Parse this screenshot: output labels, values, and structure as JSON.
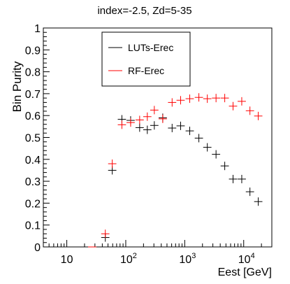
{
  "chart_data": {
    "type": "scatter",
    "title": "index=-2.5,  Zd=5-35",
    "xlabel": "Eest [GeV]",
    "ylabel": "Bin Purity",
    "xscale": "log",
    "xlim": [
      4,
      30000
    ],
    "ylim": [
      0,
      1
    ],
    "x_tick_labels": [
      {
        "value": 10,
        "base": "10",
        "exp": ""
      },
      {
        "value": 100,
        "base": "10",
        "exp": "2"
      },
      {
        "value": 1000,
        "base": "10",
        "exp": "3"
      },
      {
        "value": 10000,
        "base": "10",
        "exp": "4"
      }
    ],
    "y_ticks": [
      0,
      0.1,
      0.2,
      0.3,
      0.4,
      0.5,
      0.6,
      0.7,
      0.8,
      0.9,
      1
    ],
    "y_tick_labels": [
      "0",
      "0.1",
      "0.2",
      "0.3",
      "0.4",
      "0.5",
      "0.6",
      "0.7",
      "0.8",
      "0.9",
      "1"
    ],
    "legend_position": "top-center",
    "grid": false,
    "series": [
      {
        "name": "LUTs-Erec",
        "color": "#000000",
        "points": [
          {
            "x": 27,
            "y": 0.0
          },
          {
            "x": 45,
            "y": 0.043
          },
          {
            "x": 59,
            "y": 0.35
          },
          {
            "x": 86,
            "y": 0.583
          },
          {
            "x": 121,
            "y": 0.578
          },
          {
            "x": 172,
            "y": 0.545
          },
          {
            "x": 232,
            "y": 0.535
          },
          {
            "x": 305,
            "y": 0.555
          },
          {
            "x": 424,
            "y": 0.59
          },
          {
            "x": 611,
            "y": 0.543
          },
          {
            "x": 852,
            "y": 0.553
          },
          {
            "x": 1216,
            "y": 0.53
          },
          {
            "x": 1737,
            "y": 0.497
          },
          {
            "x": 2416,
            "y": 0.455
          },
          {
            "x": 3396,
            "y": 0.423
          },
          {
            "x": 4771,
            "y": 0.37
          },
          {
            "x": 6600,
            "y": 0.31
          },
          {
            "x": 9270,
            "y": 0.31
          },
          {
            "x": 12760,
            "y": 0.252
          },
          {
            "x": 17660,
            "y": 0.207
          }
        ]
      },
      {
        "name": "RF-Erec",
        "color": "#ff0000",
        "points": [
          {
            "x": 27,
            "y": 0.0
          },
          {
            "x": 45,
            "y": 0.06
          },
          {
            "x": 59,
            "y": 0.38
          },
          {
            "x": 86,
            "y": 0.558
          },
          {
            "x": 121,
            "y": 0.568
          },
          {
            "x": 172,
            "y": 0.58
          },
          {
            "x": 232,
            "y": 0.595
          },
          {
            "x": 305,
            "y": 0.625
          },
          {
            "x": 424,
            "y": 0.585
          },
          {
            "x": 611,
            "y": 0.66
          },
          {
            "x": 852,
            "y": 0.67
          },
          {
            "x": 1216,
            "y": 0.677
          },
          {
            "x": 1737,
            "y": 0.683
          },
          {
            "x": 2416,
            "y": 0.677
          },
          {
            "x": 3396,
            "y": 0.68
          },
          {
            "x": 4771,
            "y": 0.68
          },
          {
            "x": 6600,
            "y": 0.643
          },
          {
            "x": 9270,
            "y": 0.665
          },
          {
            "x": 12760,
            "y": 0.622
          },
          {
            "x": 17660,
            "y": 0.598
          }
        ]
      }
    ]
  }
}
